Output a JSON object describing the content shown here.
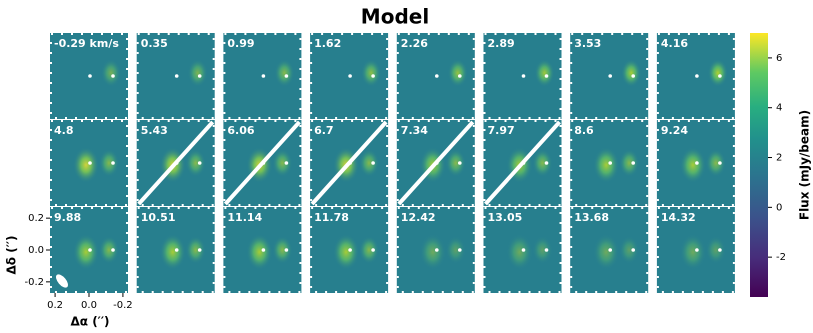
{
  "chart_data": {
    "type": "channel_map",
    "title": "Model",
    "panels": [
      "-0.29 km/s",
      "0.35",
      "0.99",
      "1.62",
      "2.26",
      "2.89",
      "3.53",
      "4.16",
      "4.8",
      "5.43",
      "6.06",
      "6.7",
      "7.34",
      "7.97",
      "8.6",
      "9.24",
      "9.88",
      "10.51",
      "11.14",
      "11.78",
      "12.42",
      "13.05",
      "13.68",
      "14.32"
    ],
    "xlabel": "Δα (′′)",
    "ylabel": "Δδ (′′)",
    "xlim": [
      0.23,
      -0.23
    ],
    "xticks": [
      0.2,
      {
        "value": 0,
        "label": "0.0"
      },
      -0.2
    ],
    "ylim": [
      -0.27,
      0.27
    ],
    "yticks": [
      0.2,
      {
        "value": 0,
        "label": "0.0"
      },
      -0.2
    ],
    "colorbar": {
      "label": "Flux (mJy/beam)",
      "lim": [
        -3.6,
        7.0
      ],
      "ticks": [
        -2,
        0,
        2,
        4,
        6
      ]
    }
  }
}
